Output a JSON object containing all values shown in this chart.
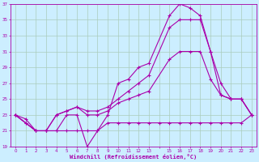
{
  "background_color": "#cceeff",
  "grid_color": "#aaccbb",
  "line_color": "#aa00aa",
  "xlim": [
    -0.5,
    23.5
  ],
  "ylim": [
    19,
    37
  ],
  "xlabel": "Windchill (Refroidissement éolien,°C)",
  "xtick_labels": [
    "0",
    "1",
    "2",
    "3",
    "4",
    "5",
    "6",
    "7",
    "8",
    "9",
    "10",
    "11",
    "12",
    "13",
    "",
    "15",
    "16",
    "17",
    "18",
    "19",
    "20",
    "21",
    "22",
    "23"
  ],
  "xtick_positions": [
    0,
    1,
    2,
    3,
    4,
    5,
    6,
    7,
    8,
    9,
    10,
    11,
    12,
    13,
    14,
    15,
    16,
    17,
    18,
    19,
    20,
    21,
    22,
    23
  ],
  "yticks": [
    19,
    21,
    23,
    25,
    27,
    29,
    31,
    33,
    35,
    37
  ],
  "line1_x": [
    0,
    1,
    2,
    3,
    4,
    5,
    6,
    7,
    8,
    9,
    10,
    11,
    12,
    13,
    14,
    15,
    16,
    17,
    18,
    19,
    20,
    21,
    22,
    23
  ],
  "line1_y": [
    23,
    22,
    21,
    21,
    21,
    21,
    21,
    21,
    21,
    22,
    22,
    22,
    22,
    22,
    22,
    22,
    22,
    22,
    22,
    22,
    22,
    22,
    22,
    23
  ],
  "line2_x": [
    0,
    1,
    2,
    3,
    4,
    5,
    6,
    7,
    8,
    9,
    10,
    11,
    12,
    13,
    15,
    16,
    17,
    18,
    19,
    20,
    21,
    22,
    23
  ],
  "line2_y": [
    23,
    22,
    21,
    21,
    21,
    23,
    23,
    19,
    21,
    23,
    27,
    27.5,
    29,
    29.5,
    35.5,
    37,
    36.5,
    35.5,
    31,
    25.5,
    25,
    25,
    23
  ],
  "line3_x": [
    0,
    1,
    2,
    3,
    4,
    5,
    6,
    7,
    8,
    9,
    10,
    11,
    12,
    13,
    15,
    16,
    17,
    18,
    19,
    20,
    21,
    22,
    23
  ],
  "line3_y": [
    23,
    22.5,
    21,
    21,
    23,
    23.5,
    24,
    23,
    23,
    23.5,
    24.5,
    25,
    25.5,
    26,
    30,
    31,
    31,
    31,
    27.5,
    25.5,
    25,
    25,
    23
  ],
  "line4_x": [
    0,
    2,
    3,
    4,
    5,
    6,
    7,
    8,
    9,
    10,
    11,
    12,
    13,
    15,
    16,
    17,
    18,
    19,
    20,
    21,
    22,
    23
  ],
  "line4_y": [
    23,
    21,
    21,
    23,
    23.5,
    24,
    23.5,
    23.5,
    24,
    25,
    26,
    27,
    28,
    34,
    35,
    35,
    35,
    31,
    27,
    25,
    25,
    23
  ]
}
